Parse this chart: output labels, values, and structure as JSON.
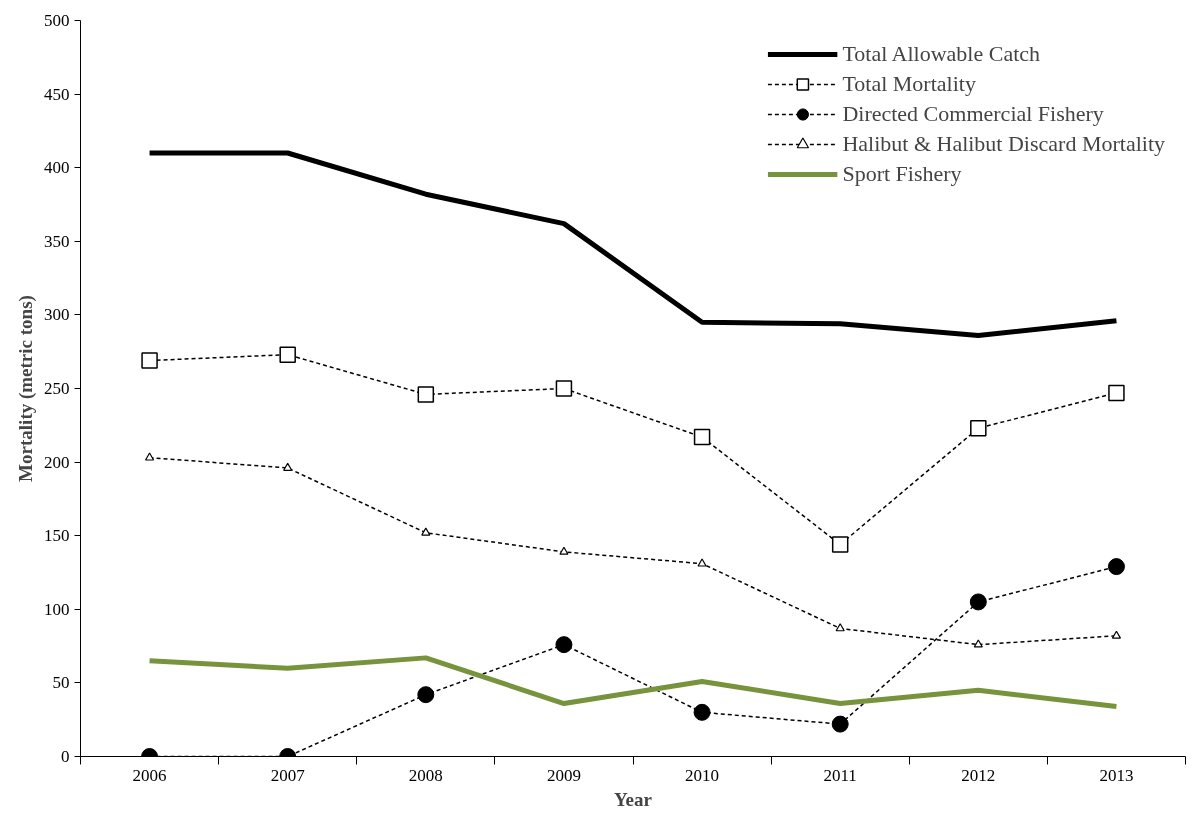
{
  "chart_data": {
    "type": "line",
    "xlabel": "Year",
    "ylabel": "Mortality (metric tons)",
    "categories": [
      "2006",
      "2007",
      "2008",
      "2009",
      "2010",
      "2011",
      "2012",
      "2013"
    ],
    "ylim": [
      0,
      500
    ],
    "yticks": [
      0,
      50,
      100,
      150,
      200,
      250,
      300,
      350,
      400,
      450,
      500
    ],
    "grid": false,
    "legend": "top right",
    "series": [
      {
        "name": "Total Allowable Catch",
        "color": "#000000",
        "line_style": "solid",
        "marker": "none",
        "values": [
          410,
          410,
          382,
          362,
          295,
          294,
          286,
          296
        ]
      },
      {
        "name": "Total Mortality",
        "color": "#000000",
        "line_style": "dashed",
        "marker": "square",
        "values": [
          269,
          273,
          246,
          250,
          217,
          144,
          223,
          247
        ]
      },
      {
        "name": "Directed Commercial Fishery",
        "color": "#000000",
        "line_style": "dashed",
        "marker": "circle",
        "values": [
          0,
          0,
          42,
          76,
          30,
          22,
          105,
          129
        ]
      },
      {
        "name": "Halibut & Halibut Discard Mortality",
        "color": "#000000",
        "line_style": "dashed",
        "marker": "triangle",
        "values": [
          203,
          196,
          152,
          139,
          131,
          87,
          76,
          82
        ]
      },
      {
        "name": "Sport Fishery",
        "color": "#77933c",
        "line_style": "solid",
        "marker": "none",
        "values": [
          65,
          60,
          67,
          36,
          51,
          36,
          45,
          34
        ]
      }
    ]
  }
}
